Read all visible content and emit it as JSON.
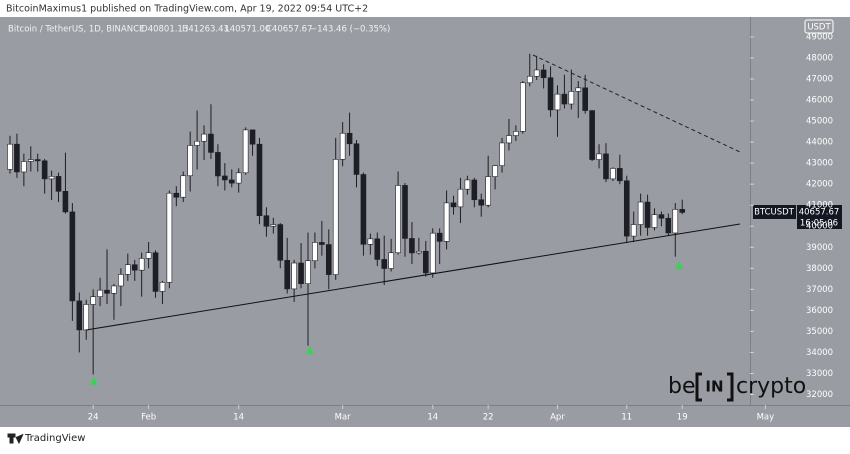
{
  "header": "BitcoinMaximus1 published on TradingView.com, Apr 19, 2022 09:54 UTC+2",
  "footer": "TradingView",
  "watermark": {
    "left": "be",
    "middle": "IN",
    "right": "crypto"
  },
  "legend": {
    "symbol": "Bitcoin / TetherUS, 1D, BINANCE",
    "open": "O40801.13",
    "high": "H41263.43",
    "low": "L40571.00",
    "close": "C40657.67",
    "change": "−143.46 (−0.35%)"
  },
  "price_label": {
    "symbol": "BTCUSDT",
    "price": "40657.67",
    "countdown": "16:05:06"
  },
  "chart_data": {
    "type": "candlestick",
    "axis_unit": "USDT",
    "up_color": "#ffffff",
    "down_color": "#1e1f26",
    "x": [
      "Jan 12",
      "Jan 13",
      "Jan 14",
      "Jan 15",
      "Jan 16",
      "Jan 17",
      "Jan 18",
      "Jan 19",
      "Jan 20",
      "Jan 21",
      "Jan 22",
      "Jan 23",
      "Jan 24",
      "Jan 25",
      "Jan 26",
      "Jan 27",
      "Jan 28",
      "Jan 29",
      "Jan 30",
      "Jan 31",
      "Feb 1",
      "Feb 2",
      "Feb 3",
      "Feb 4",
      "Feb 5",
      "Feb 6",
      "Feb 7",
      "Feb 8",
      "Feb 9",
      "Feb 10",
      "Feb 11",
      "Feb 12",
      "Feb 13",
      "Feb 14",
      "Feb 15",
      "Feb 16",
      "Feb 17",
      "Feb 18",
      "Feb 19",
      "Feb 20",
      "Feb 21",
      "Feb 22",
      "Feb 23",
      "Feb 24",
      "Feb 25",
      "Feb 26",
      "Feb 27",
      "Feb 28",
      "Mar 1",
      "Mar 2",
      "Mar 3",
      "Mar 4",
      "Mar 5",
      "Mar 6",
      "Mar 7",
      "Mar 8",
      "Mar 9",
      "Mar 10",
      "Mar 11",
      "Mar 12",
      "Mar 13",
      "Mar 14",
      "Mar 15",
      "Mar 16",
      "Mar 17",
      "Mar 18",
      "Mar 19",
      "Mar 20",
      "Mar 21",
      "Mar 22",
      "Mar 23",
      "Mar 24",
      "Mar 25",
      "Mar 26",
      "Mar 27",
      "Mar 28",
      "Mar 29",
      "Mar 30",
      "Mar 31",
      "Apr 1",
      "Apr 2",
      "Apr 3",
      "Apr 4",
      "Apr 5",
      "Apr 6",
      "Apr 7",
      "Apr 8",
      "Apr 9",
      "Apr 10",
      "Apr 11",
      "Apr 12",
      "Apr 13",
      "Apr 14",
      "Apr 15",
      "Apr 16",
      "Apr 17",
      "Apr 18",
      "Apr 19"
    ],
    "open": [
      42700,
      43900,
      42580,
      43080,
      43170,
      43110,
      42250,
      42370,
      41660,
      40680,
      36450,
      35070,
      36280,
      36650,
      36960,
      36810,
      37160,
      37710,
      38170,
      37910,
      38470,
      38740,
      36900,
      37330,
      41570,
      41380,
      42400,
      43840,
      44040,
      44380,
      43510,
      42390,
      42200,
      42050,
      42540,
      44580,
      43900,
      40500,
      40000,
      40080,
      38380,
      37020,
      38250,
      37270,
      38360,
      39230,
      39130,
      37700,
      43180,
      44420,
      43920,
      42460,
      39140,
      39400,
      38420,
      37990,
      38740,
      41940,
      39420,
      38730,
      38810,
      37780,
      39670,
      39280,
      41110,
      40920,
      41760,
      42200,
      41260,
      41000,
      42360,
      42880,
      43960,
      44310,
      44510,
      46820,
      47130,
      47430,
      47060,
      45530,
      46280,
      45810,
      46410,
      46580,
      45500,
      43170,
      43440,
      42250,
      42750,
      42160,
      39530,
      40080,
      41150,
      39940,
      40550,
      40380,
      39680,
      40801.13
    ],
    "high": [
      44300,
      44400,
      43450,
      43800,
      43450,
      43200,
      42650,
      42550,
      43500,
      41100,
      36850,
      36500,
      37000,
      37550,
      38900,
      37250,
      38000,
      38700,
      38400,
      38750,
      39250,
      38850,
      37400,
      41700,
      41900,
      42600,
      44500,
      45500,
      44800,
      45800,
      43900,
      43000,
      42700,
      42750,
      44700,
      44600,
      44200,
      40900,
      40400,
      40150,
      39450,
      38400,
      39200,
      39700,
      39700,
      40250,
      39850,
      44200,
      44950,
      45400,
      44100,
      42550,
      39650,
      39700,
      39550,
      39400,
      42600,
      42050,
      40200,
      39450,
      39300,
      39900,
      39900,
      41700,
      41450,
      42300,
      42400,
      42300,
      41550,
      43350,
      42900,
      44200,
      45100,
      44800,
      46900,
      48200,
      48100,
      47700,
      47600,
      46700,
      47200,
      47450,
      46900,
      47200,
      45500,
      43900,
      43950,
      42800,
      43400,
      42400,
      40700,
      41550,
      41500,
      40850,
      40700,
      40600,
      41100,
      41263.43
    ],
    "low": [
      42500,
      42300,
      41900,
      42600,
      42600,
      41550,
      41250,
      41150,
      40600,
      35500,
      34000,
      34600,
      32950,
      36200,
      36300,
      35550,
      36200,
      37400,
      37400,
      36650,
      38000,
      36600,
      36300,
      37050,
      40950,
      41150,
      41650,
      42700,
      43150,
      43200,
      41900,
      41700,
      41850,
      41600,
      42450,
      43350,
      40100,
      39500,
      39650,
      38000,
      36800,
      36400,
      37050,
      34320,
      38000,
      38600,
      37000,
      37450,
      42850,
      43350,
      41850,
      38600,
      38650,
      38100,
      37200,
      37850,
      38650,
      38550,
      38200,
      38650,
      37600,
      37550,
      38200,
      38900,
      40550,
      40150,
      41500,
      40900,
      40450,
      40900,
      41750,
      42550,
      43600,
      44050,
      44400,
      46650,
      46950,
      46550,
      45200,
      44250,
      45600,
      45550,
      45150,
      45350,
      43100,
      42750,
      42100,
      42150,
      42000,
      39200,
      39250,
      39550,
      39550,
      39800,
      40000,
      39550,
      38550,
      40571
    ],
    "close": [
      43900,
      42580,
      43080,
      43170,
      43110,
      42250,
      42370,
      41660,
      40680,
      36450,
      35070,
      36280,
      36650,
      36960,
      36810,
      37160,
      37710,
      38170,
      37910,
      38470,
      38740,
      36900,
      37330,
      41570,
      41380,
      42400,
      43840,
      44040,
      44380,
      43510,
      42390,
      42200,
      42050,
      42540,
      44580,
      43900,
      40500,
      40000,
      40080,
      38380,
      37020,
      38250,
      37270,
      38360,
      39230,
      39130,
      37700,
      43180,
      44420,
      43920,
      42460,
      39140,
      39400,
      38420,
      37990,
      38740,
      41940,
      39420,
      38730,
      38810,
      37780,
      39670,
      39280,
      41110,
      40920,
      41760,
      42200,
      41260,
      41000,
      42360,
      42880,
      43960,
      44310,
      44510,
      46820,
      47130,
      47430,
      47060,
      45530,
      46280,
      45810,
      46410,
      46580,
      45500,
      43170,
      43440,
      42250,
      42750,
      42160,
      39530,
      40080,
      41150,
      39940,
      40550,
      40380,
      39680,
      40800,
      40657.67
    ],
    "ylim": [
      31500,
      49900
    ],
    "yticks": [
      32000,
      33000,
      34000,
      35000,
      36000,
      37000,
      38000,
      39000,
      40000,
      41000,
      42000,
      43000,
      44000,
      45000,
      46000,
      47000,
      48000,
      49000
    ],
    "xticks": [
      {
        "value": "Jan 24",
        "label": "24"
      },
      {
        "value": "Feb 1",
        "label": "Feb"
      },
      {
        "value": "Feb 14",
        "label": "14"
      },
      {
        "value": "Mar 1",
        "label": "Mar"
      },
      {
        "value": "Mar 14",
        "label": "14"
      },
      {
        "value": "Mar 22",
        "label": "22"
      },
      {
        "value": "Apr 1",
        "label": "Apr"
      },
      {
        "value": "Apr 11",
        "label": "11"
      },
      {
        "value": "Apr 19",
        "label": "19"
      },
      {
        "value": "May 1",
        "label": "May"
      }
    ]
  }
}
